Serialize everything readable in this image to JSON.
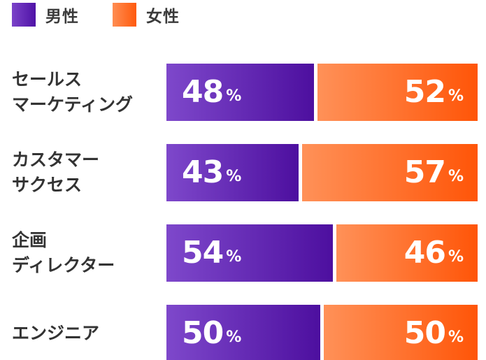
{
  "legend": {
    "male_label": "男性",
    "female_label": "女性"
  },
  "colors": {
    "male": "#5a1aab",
    "female": "#ff6a1f"
  },
  "percent_unit": "%",
  "chart_data": {
    "type": "bar",
    "orientation": "horizontal",
    "stacked": true,
    "categories": [
      [
        "セールス",
        "マーケティング"
      ],
      [
        "カスタマー",
        "サクセス"
      ],
      [
        "企画",
        "ディレクター"
      ],
      [
        "エンジニア"
      ]
    ],
    "series": [
      {
        "name": "男性",
        "values": [
          48,
          43,
          54,
          50
        ]
      },
      {
        "name": "女性",
        "values": [
          52,
          57,
          46,
          50
        ]
      }
    ],
    "unit": "%",
    "xlim": [
      0,
      100
    ],
    "legend_position": "top-left",
    "grid": false
  }
}
